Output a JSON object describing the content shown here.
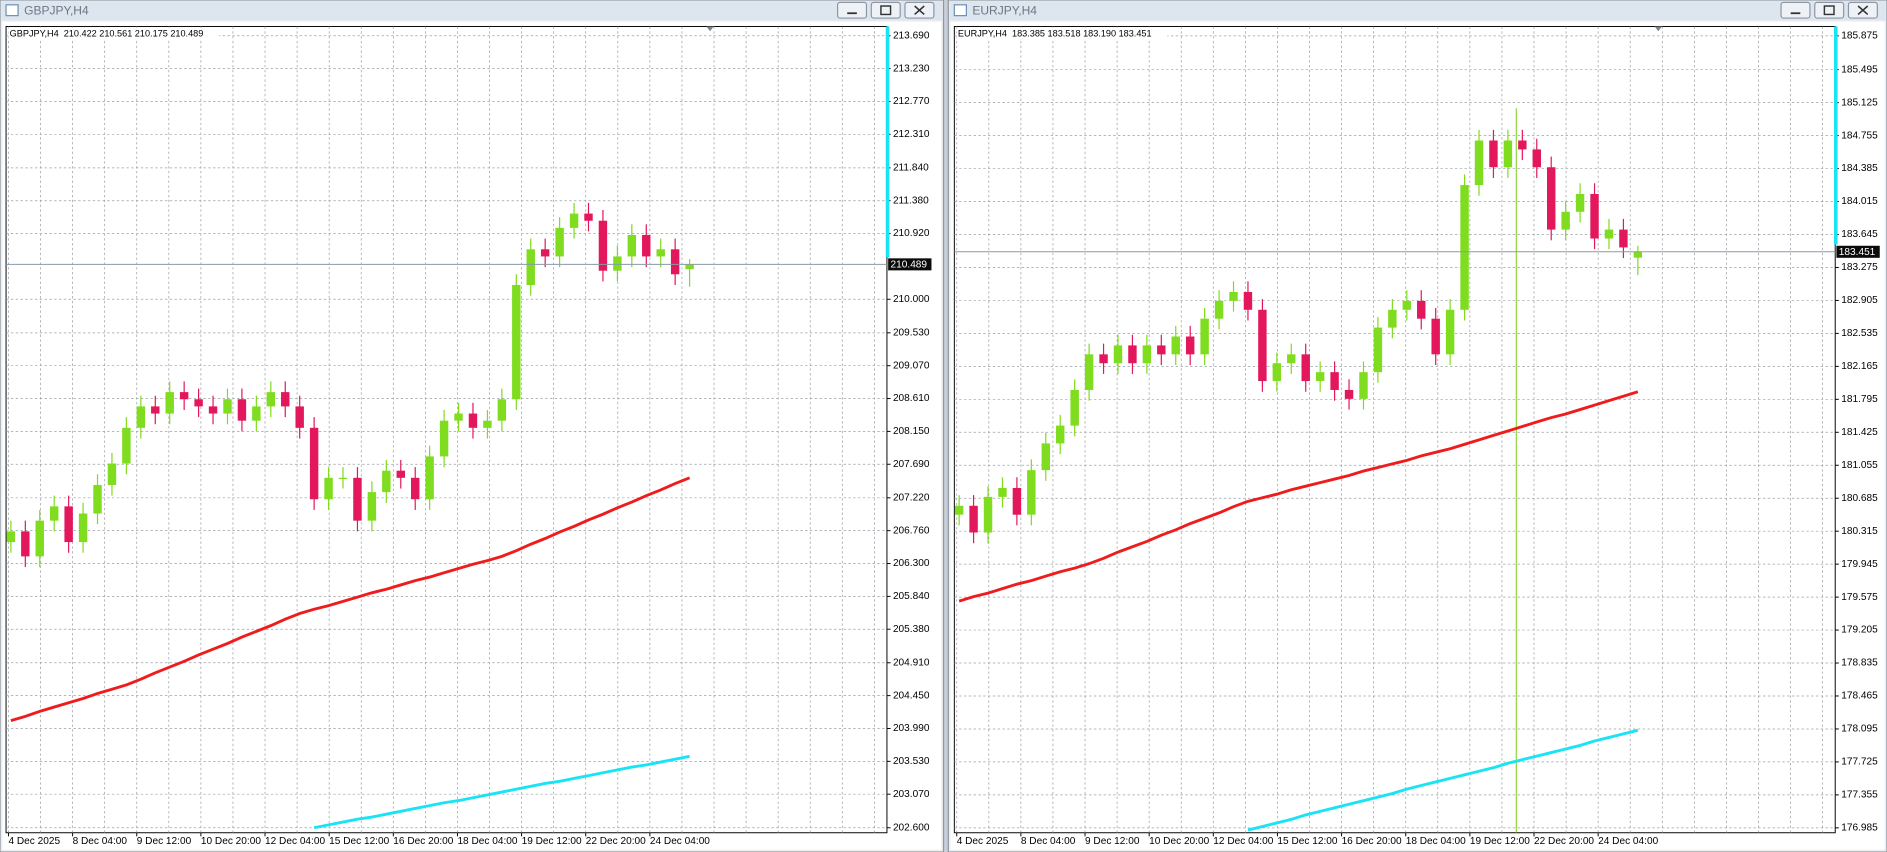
{
  "chart_data": [
    {
      "type": "candlestick",
      "window_title": "GBPJPY,H4",
      "title": "GBPJPY,H4  210.422 210.561 210.175 210.489",
      "up_color": "#7fdc1e",
      "down_color": "#e3175b",
      "open": [
        206.6,
        206.75,
        206.4,
        206.9,
        207.1,
        206.6,
        207.0,
        207.4,
        207.7,
        208.2,
        208.5,
        208.4,
        208.7,
        208.6,
        208.5,
        208.4,
        208.6,
        208.3,
        208.5,
        208.7,
        208.5,
        208.2,
        207.2,
        207.5,
        207.5,
        206.9,
        207.3,
        207.6,
        207.5,
        207.2,
        207.8,
        208.3,
        208.4,
        208.2,
        208.3,
        208.6,
        210.2,
        210.7,
        210.6,
        211.0,
        211.2,
        211.1,
        210.4,
        210.6,
        210.9,
        210.6,
        210.7,
        210.422
      ],
      "high": [
        206.9,
        206.9,
        207.05,
        207.25,
        207.25,
        207.15,
        207.55,
        207.85,
        208.35,
        208.65,
        208.65,
        208.85,
        208.85,
        208.75,
        208.65,
        208.75,
        208.75,
        208.65,
        208.85,
        208.85,
        208.65,
        208.35,
        207.65,
        207.65,
        207.65,
        207.45,
        207.75,
        207.75,
        207.65,
        207.95,
        208.45,
        208.55,
        208.55,
        208.45,
        208.75,
        210.35,
        210.85,
        210.85,
        211.15,
        211.35,
        211.35,
        211.25,
        210.75,
        211.05,
        211.05,
        210.85,
        210.85,
        210.561
      ],
      "low": [
        206.45,
        206.25,
        206.25,
        206.75,
        206.45,
        206.45,
        206.85,
        207.25,
        207.55,
        208.05,
        208.25,
        208.25,
        208.45,
        208.35,
        208.25,
        208.25,
        208.15,
        208.15,
        208.35,
        208.35,
        208.05,
        207.05,
        207.05,
        207.35,
        206.75,
        206.75,
        207.15,
        207.35,
        207.05,
        207.05,
        207.65,
        208.15,
        208.05,
        208.05,
        208.15,
        208.45,
        210.05,
        210.45,
        210.45,
        210.85,
        210.95,
        210.25,
        210.25,
        210.45,
        210.45,
        210.45,
        210.2,
        210.175
      ],
      "close": [
        206.75,
        206.4,
        206.9,
        207.1,
        206.6,
        207.0,
        207.4,
        207.7,
        208.2,
        208.5,
        208.4,
        208.7,
        208.6,
        208.5,
        208.4,
        208.6,
        208.3,
        208.5,
        208.7,
        208.5,
        208.2,
        207.2,
        207.5,
        207.5,
        206.9,
        207.3,
        207.6,
        207.5,
        207.2,
        207.8,
        208.3,
        208.4,
        208.2,
        208.3,
        208.6,
        210.2,
        210.7,
        210.6,
        211.0,
        211.2,
        211.1,
        210.4,
        210.6,
        210.9,
        210.6,
        210.7,
        210.35,
        210.489
      ],
      "series": [
        {
          "color": "#ee1c1c",
          "values": [
            204.1,
            204.16,
            204.23,
            204.29,
            204.35,
            204.41,
            204.48,
            204.54,
            204.6,
            204.68,
            204.77,
            204.85,
            204.93,
            205.02,
            205.1,
            205.18,
            205.27,
            205.35,
            205.43,
            205.52,
            205.6,
            205.66,
            205.71,
            205.77,
            205.83,
            205.89,
            205.94,
            206.0,
            206.06,
            206.11,
            206.17,
            206.23,
            206.29,
            206.34,
            206.4,
            206.48,
            206.57,
            206.65,
            206.74,
            206.82,
            206.91,
            206.99,
            207.08,
            207.16,
            207.25,
            207.33,
            207.42,
            207.5
          ]
        },
        {
          "color": "#19e3f5",
          "values": [
            null,
            null,
            null,
            null,
            null,
            null,
            null,
            null,
            null,
            null,
            null,
            null,
            null,
            null,
            null,
            null,
            null,
            null,
            null,
            null,
            null,
            202.6,
            202.64,
            202.68,
            202.72,
            202.75,
            202.79,
            202.83,
            202.87,
            202.91,
            202.95,
            202.98,
            203.02,
            203.06,
            203.1,
            203.14,
            203.18,
            203.22,
            203.25,
            203.29,
            203.33,
            203.37,
            203.41,
            203.45,
            203.48,
            203.52,
            203.56,
            203.6
          ]
        }
      ],
      "last_price": {
        "value": 210.489,
        "label": "210.489"
      },
      "ylim": [
        202.53,
        213.82
      ],
      "yticks": [
        {
          "value": 202.6,
          "label": "202.600"
        },
        {
          "value": 203.07,
          "label": "203.070"
        },
        {
          "value": 203.53,
          "label": "203.530"
        },
        {
          "value": 203.99,
          "label": "203.990"
        },
        {
          "value": 204.45,
          "label": "204.450"
        },
        {
          "value": 204.91,
          "label": "204.910"
        },
        {
          "value": 205.38,
          "label": "205.380"
        },
        {
          "value": 205.84,
          "label": "205.840"
        },
        {
          "value": 206.3,
          "label": "206.300"
        },
        {
          "value": 206.76,
          "label": "206.760"
        },
        {
          "value": 207.22,
          "label": "207.220"
        },
        {
          "value": 207.69,
          "label": "207.690"
        },
        {
          "value": 208.15,
          "label": "208.150"
        },
        {
          "value": 208.61,
          "label": "208.610"
        },
        {
          "value": 209.07,
          "label": "209.070"
        },
        {
          "value": 209.53,
          "label": "209.530"
        },
        {
          "value": 210,
          "label": "210.000"
        },
        {
          "value": 210.92,
          "label": "210.920"
        },
        {
          "value": 211.38,
          "label": "211.380"
        },
        {
          "value": 211.84,
          "label": "211.840"
        },
        {
          "value": 212.31,
          "label": "212.310"
        },
        {
          "value": 212.77,
          "label": "212.770"
        },
        {
          "value": 213.23,
          "label": "213.230"
        },
        {
          "value": 213.69,
          "label": "213.690"
        }
      ],
      "xtick_labels": [
        "4 Dec 2025",
        "8 Dec 04:00",
        "9 Dec 12:00",
        "10 Dec 20:00",
        "12 Dec 04:00",
        "15 Dec 12:00",
        "16 Dec 20:00",
        "18 Dec 04:00",
        "19 Dec 12:00",
        "22 Dec 20:00",
        "24 Dec 04:00"
      ],
      "grid": true
    },
    {
      "type": "candlestick",
      "window_title": "EURJPY,H4",
      "title": "EURJPY,H4  183.385 183.518 183.190 183.451",
      "up_color": "#7fdc1e",
      "down_color": "#e3175b",
      "open": [
        180.5,
        180.6,
        180.3,
        180.7,
        180.8,
        180.5,
        181.0,
        181.3,
        181.5,
        181.9,
        182.3,
        182.2,
        182.4,
        182.2,
        182.4,
        182.3,
        182.5,
        182.3,
        182.7,
        182.9,
        183.0,
        182.8,
        182.0,
        182.2,
        182.3,
        182.0,
        182.1,
        181.9,
        181.8,
        182.1,
        182.6,
        182.8,
        182.9,
        182.7,
        182.3,
        182.8,
        184.2,
        184.7,
        184.4,
        184.7,
        184.6,
        184.4,
        183.7,
        183.9,
        184.1,
        183.6,
        183.7,
        183.385
      ],
      "high": [
        180.72,
        180.72,
        180.82,
        180.92,
        180.92,
        181.12,
        181.42,
        181.62,
        182.02,
        182.42,
        182.42,
        182.52,
        182.52,
        182.52,
        182.52,
        182.62,
        182.62,
        182.82,
        183.02,
        183.12,
        183.12,
        182.92,
        182.32,
        182.42,
        182.42,
        182.22,
        182.22,
        182.02,
        182.22,
        182.72,
        182.92,
        183.02,
        183.02,
        182.82,
        182.92,
        184.32,
        184.82,
        184.82,
        184.82,
        184.82,
        184.72,
        184.52,
        184.02,
        184.22,
        184.22,
        183.82,
        183.82,
        183.518
      ],
      "low": [
        180.38,
        180.18,
        180.18,
        180.58,
        180.38,
        180.38,
        180.88,
        181.18,
        181.38,
        181.78,
        182.08,
        182.08,
        182.08,
        182.08,
        182.18,
        182.18,
        182.18,
        182.18,
        182.58,
        182.78,
        182.68,
        181.88,
        181.88,
        182.08,
        181.88,
        181.88,
        181.78,
        181.68,
        181.68,
        181.98,
        182.48,
        182.68,
        182.58,
        182.18,
        182.18,
        182.68,
        184.08,
        184.28,
        184.28,
        184.48,
        184.28,
        183.58,
        183.58,
        183.78,
        183.48,
        183.48,
        183.38,
        183.19
      ],
      "close": [
        180.6,
        180.3,
        180.7,
        180.8,
        180.5,
        181.0,
        181.3,
        181.5,
        181.9,
        182.3,
        182.2,
        182.4,
        182.2,
        182.4,
        182.3,
        182.5,
        182.3,
        182.7,
        182.9,
        183.0,
        182.8,
        182.0,
        182.2,
        182.3,
        182.0,
        182.1,
        181.9,
        181.8,
        182.1,
        182.6,
        182.8,
        182.9,
        182.7,
        182.3,
        182.8,
        184.2,
        184.7,
        184.4,
        184.7,
        184.6,
        184.4,
        183.7,
        183.9,
        184.1,
        183.6,
        183.7,
        183.5,
        183.451
      ],
      "series": [
        {
          "color": "#ee1c1c",
          "values": [
            179.53,
            179.58,
            179.62,
            179.67,
            179.72,
            179.76,
            179.81,
            179.86,
            179.9,
            179.95,
            180.01,
            180.08,
            180.14,
            180.2,
            180.27,
            180.33,
            180.4,
            180.46,
            180.52,
            180.59,
            180.65,
            180.69,
            180.73,
            180.78,
            180.82,
            180.86,
            180.9,
            180.94,
            180.99,
            181.03,
            181.07,
            181.11,
            181.16,
            181.2,
            181.24,
            181.29,
            181.34,
            181.39,
            181.44,
            181.49,
            181.54,
            181.59,
            181.63,
            181.68,
            181.73,
            181.78,
            181.83,
            181.88
          ]
        },
        {
          "color": "#19e3f5",
          "values": [
            null,
            null,
            null,
            null,
            null,
            null,
            null,
            null,
            null,
            null,
            null,
            null,
            null,
            null,
            null,
            null,
            null,
            null,
            null,
            null,
            176.96,
            177.0,
            177.04,
            177.08,
            177.13,
            177.17,
            177.21,
            177.25,
            177.29,
            177.33,
            177.37,
            177.42,
            177.46,
            177.5,
            177.54,
            177.58,
            177.62,
            177.66,
            177.71,
            177.75,
            177.79,
            177.83,
            177.87,
            177.91,
            177.96,
            178.0,
            178.04,
            178.08
          ]
        }
      ],
      "last_price": {
        "value": 183.451,
        "label": "183.451"
      },
      "ylim": [
        176.93,
        185.98
      ],
      "yticks": [
        {
          "value": 176.985,
          "label": "176.985"
        },
        {
          "value": 177.355,
          "label": "177.355"
        },
        {
          "value": 177.725,
          "label": "177.725"
        },
        {
          "value": 178.095,
          "label": "178.095"
        },
        {
          "value": 178.465,
          "label": "178.465"
        },
        {
          "value": 178.835,
          "label": "178.835"
        },
        {
          "value": 179.205,
          "label": "179.205"
        },
        {
          "value": 179.575,
          "label": "179.575"
        },
        {
          "value": 179.945,
          "label": "179.945"
        },
        {
          "value": 180.315,
          "label": "180.315"
        },
        {
          "value": 180.685,
          "label": "180.685"
        },
        {
          "value": 181.055,
          "label": "181.055"
        },
        {
          "value": 181.425,
          "label": "181.425"
        },
        {
          "value": 181.795,
          "label": "181.795"
        },
        {
          "value": 182.165,
          "label": "182.165"
        },
        {
          "value": 182.535,
          "label": "182.535"
        },
        {
          "value": 182.905,
          "label": "182.905"
        },
        {
          "value": 183.275,
          "label": "183.275"
        },
        {
          "value": 183.645,
          "label": "183.645"
        },
        {
          "value": 184.015,
          "label": "184.015"
        },
        {
          "value": 184.385,
          "label": "184.385"
        },
        {
          "value": 184.755,
          "label": "184.755"
        },
        {
          "value": 185.125,
          "label": "185.125"
        },
        {
          "value": 185.495,
          "label": "185.495"
        },
        {
          "value": 185.875,
          "label": "185.875"
        }
      ],
      "xtick_labels": [
        "4 Dec 2025",
        "8 Dec 04:00",
        "9 Dec 12:00",
        "10 Dec 20:00",
        "12 Dec 04:00",
        "15 Dec 12:00",
        "16 Dec 20:00",
        "18 Dec 04:00",
        "19 Dec 12:00",
        "22 Dec 20:00",
        "24 Dec 04:00"
      ],
      "grid": true
    }
  ]
}
